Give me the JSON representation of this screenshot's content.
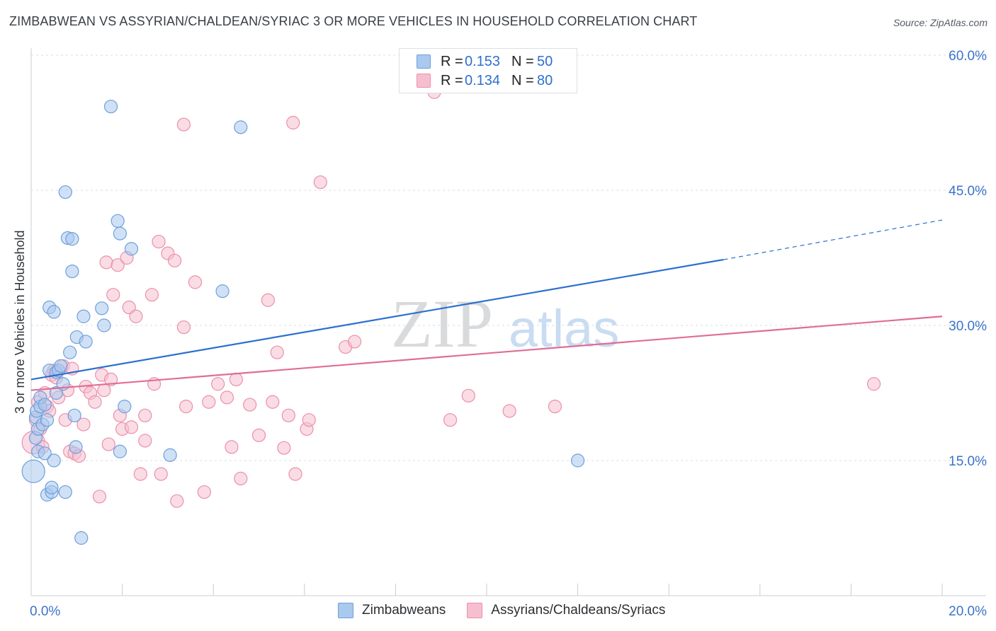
{
  "header": {
    "title": "ZIMBABWEAN VS ASSYRIAN/CHALDEAN/SYRIAC 3 OR MORE VEHICLES IN HOUSEHOLD CORRELATION CHART",
    "source": "Source: ZipAtlas.com"
  },
  "legend": {
    "rows": [
      {
        "r_label": "R =",
        "r_value": "0.153",
        "n_label": "N =",
        "n_value": "50"
      },
      {
        "r_label": "R =",
        "r_value": "0.134",
        "n_label": "N =",
        "n_value": "80"
      }
    ]
  },
  "bottom_legend": {
    "items": [
      {
        "label": "Zimbabweans"
      },
      {
        "label": "Assyrians/Chaldeans/Syriacs"
      }
    ]
  },
  "watermark": {
    "zip": "ZIP",
    "atlas": "atlas"
  },
  "colors": {
    "blue_fill": "#a9c9ee",
    "blue_stroke": "#6d9fdc",
    "blue_line": "#2b6fd0",
    "pink_fill": "#f6bfd0",
    "pink_stroke": "#ec8fab",
    "pink_line": "#e06d94",
    "axis_label": "#3a73c9",
    "grid": "#d9dce0"
  },
  "chart_data": {
    "type": "scatter",
    "title": "ZIMBABWEAN VS ASSYRIAN/CHALDEAN/SYRIAC 3 OR MORE VEHICLES IN HOUSEHOLD CORRELATION CHART",
    "xlabel": "",
    "ylabel": "3 or more Vehicles in Household",
    "xlim": [
      0,
      20
    ],
    "ylim": [
      0,
      60
    ],
    "x_tick_labels": [
      {
        "value": 0,
        "label": "0.0%"
      },
      {
        "value": 20,
        "label": "20.0%"
      }
    ],
    "y_tick_labels": [
      {
        "value": 15,
        "label": "15.0%"
      },
      {
        "value": 30,
        "label": "30.0%"
      },
      {
        "value": 45,
        "label": "45.0%"
      },
      {
        "value": 60,
        "label": "60.0%"
      }
    ],
    "series": [
      {
        "name": "Zimbabweans",
        "r": 0.153,
        "n": 50,
        "trend": {
          "x0": 0,
          "y0": 24.0,
          "x1": 15.2,
          "y1": 37.3,
          "dash_to_x": 20,
          "dash_to_y": 41.7
        },
        "points": [
          [
            0.05,
            13.8,
            16
          ],
          [
            0.1,
            17.5,
            9
          ],
          [
            0.1,
            19.8,
            9
          ],
          [
            0.12,
            20.5,
            9
          ],
          [
            0.15,
            16.0,
            9
          ],
          [
            0.15,
            18.5,
            9
          ],
          [
            0.2,
            21.0,
            9
          ],
          [
            0.2,
            22.0,
            9
          ],
          [
            0.25,
            19.0,
            9
          ],
          [
            0.3,
            21.2,
            9
          ],
          [
            0.3,
            15.8,
            9
          ],
          [
            0.35,
            19.5,
            9
          ],
          [
            0.35,
            11.2,
            9
          ],
          [
            0.4,
            25.0,
            9
          ],
          [
            0.4,
            32.0,
            9
          ],
          [
            0.45,
            11.5,
            9
          ],
          [
            0.45,
            12.0,
            9
          ],
          [
            0.5,
            15.0,
            9
          ],
          [
            0.5,
            31.5,
            9
          ],
          [
            0.55,
            22.5,
            9
          ],
          [
            0.55,
            24.8,
            9
          ],
          [
            0.6,
            25.0,
            9
          ],
          [
            0.65,
            25.5,
            9
          ],
          [
            0.7,
            23.5,
            9
          ],
          [
            0.75,
            11.5,
            9
          ],
          [
            0.75,
            44.8,
            9
          ],
          [
            0.8,
            39.7,
            9
          ],
          [
            0.85,
            27.0,
            9
          ],
          [
            0.9,
            39.6,
            9
          ],
          [
            0.9,
            36.0,
            9
          ],
          [
            0.95,
            20.0,
            9
          ],
          [
            0.98,
            16.5,
            9
          ],
          [
            1.0,
            28.7,
            9
          ],
          [
            1.1,
            6.4,
            9
          ],
          [
            1.15,
            31.0,
            9
          ],
          [
            1.2,
            28.2,
            9
          ],
          [
            1.55,
            31.9,
            9
          ],
          [
            1.6,
            30.0,
            9
          ],
          [
            1.75,
            54.3,
            9
          ],
          [
            1.9,
            41.6,
            9
          ],
          [
            1.95,
            16.0,
            9
          ],
          [
            1.95,
            40.2,
            9
          ],
          [
            2.05,
            21.0,
            9
          ],
          [
            2.2,
            38.5,
            9
          ],
          [
            3.05,
            15.6,
            9
          ],
          [
            4.2,
            33.8,
            9
          ],
          [
            4.6,
            52.0,
            9
          ],
          [
            12.0,
            15.0,
            9
          ]
        ]
      },
      {
        "name": "Assyrians/Chaldeans/Syriacs",
        "r": 0.134,
        "n": 80,
        "trend": {
          "x0": 0,
          "y0": 22.8,
          "x1": 20,
          "y1": 31.0
        },
        "points": [
          [
            0.05,
            17.0,
            16
          ],
          [
            0.1,
            19.5,
            9
          ],
          [
            0.15,
            21.5,
            9
          ],
          [
            0.2,
            18.5,
            9
          ],
          [
            0.25,
            16.5,
            9
          ],
          [
            0.3,
            22.5,
            9
          ],
          [
            0.35,
            21.0,
            9
          ],
          [
            0.4,
            20.5,
            9
          ],
          [
            0.45,
            24.5,
            9
          ],
          [
            0.5,
            25.0,
            9
          ],
          [
            0.55,
            24.2,
            9
          ],
          [
            0.6,
            22.0,
            9
          ],
          [
            0.7,
            25.5,
            9
          ],
          [
            0.75,
            19.5,
            9
          ],
          [
            0.8,
            22.8,
            9
          ],
          [
            0.85,
            16.0,
            9
          ],
          [
            0.9,
            25.2,
            9
          ],
          [
            0.95,
            15.8,
            9
          ],
          [
            1.05,
            15.5,
            9
          ],
          [
            1.15,
            19.0,
            9
          ],
          [
            1.2,
            23.2,
            9
          ],
          [
            1.3,
            22.5,
            9
          ],
          [
            1.4,
            21.5,
            9
          ],
          [
            1.5,
            11.0,
            9
          ],
          [
            1.55,
            24.5,
            9
          ],
          [
            1.6,
            22.8,
            9
          ],
          [
            1.65,
            37.0,
            9
          ],
          [
            1.7,
            16.8,
            9
          ],
          [
            1.75,
            24.0,
            9
          ],
          [
            1.8,
            33.4,
            9
          ],
          [
            1.9,
            36.7,
            9
          ],
          [
            1.95,
            20.0,
            9
          ],
          [
            2.0,
            18.5,
            9
          ],
          [
            2.1,
            37.5,
            9
          ],
          [
            2.15,
            32.0,
            9
          ],
          [
            2.2,
            18.7,
            9
          ],
          [
            2.3,
            31.0,
            9
          ],
          [
            2.4,
            13.5,
            9
          ],
          [
            2.5,
            20.0,
            9
          ],
          [
            2.5,
            17.2,
            9
          ],
          [
            2.65,
            33.4,
            9
          ],
          [
            2.7,
            23.5,
            9
          ],
          [
            2.8,
            39.3,
            9
          ],
          [
            2.85,
            13.5,
            9
          ],
          [
            3.0,
            38.0,
            9
          ],
          [
            3.15,
            37.2,
            9
          ],
          [
            3.2,
            10.5,
            9
          ],
          [
            3.35,
            29.8,
            9
          ],
          [
            3.4,
            21.0,
            9
          ],
          [
            3.35,
            52.3,
            9
          ],
          [
            3.6,
            34.8,
            9
          ],
          [
            3.8,
            11.5,
            9
          ],
          [
            3.9,
            21.5,
            9
          ],
          [
            4.1,
            23.5,
            9
          ],
          [
            4.3,
            22.0,
            9
          ],
          [
            4.4,
            16.5,
            9
          ],
          [
            4.5,
            24.0,
            9
          ],
          [
            4.6,
            13.0,
            9
          ],
          [
            4.8,
            21.2,
            9
          ],
          [
            5.0,
            17.8,
            9
          ],
          [
            5.2,
            32.8,
            9
          ],
          [
            5.3,
            21.5,
            9
          ],
          [
            5.4,
            27.0,
            9
          ],
          [
            5.55,
            16.4,
            9
          ],
          [
            5.65,
            20.0,
            9
          ],
          [
            5.75,
            52.5,
            9
          ],
          [
            5.8,
            13.5,
            9
          ],
          [
            6.05,
            18.5,
            9
          ],
          [
            6.1,
            19.5,
            9
          ],
          [
            6.35,
            45.9,
            9
          ],
          [
            6.9,
            27.6,
            9
          ],
          [
            7.1,
            28.2,
            9
          ],
          [
            8.85,
            55.9,
            9
          ],
          [
            9.2,
            19.5,
            9
          ],
          [
            9.6,
            22.2,
            9
          ],
          [
            10.5,
            20.5,
            9
          ],
          [
            11.5,
            21.0,
            9
          ],
          [
            18.5,
            23.5,
            9
          ]
        ]
      }
    ]
  }
}
